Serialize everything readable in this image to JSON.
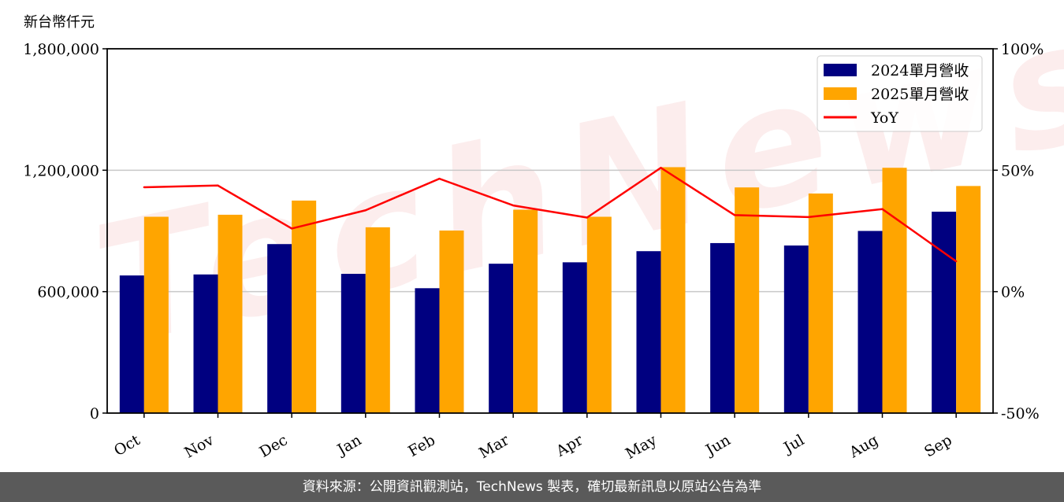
{
  "unit_label": "新台幣仟元",
  "footer": "資料來源：公開資訊觀測站，TechNews 製表，確切最新訊息以原站公告為準",
  "watermark": "TechNews",
  "colors": {
    "series_2024": "#000080",
    "series_2025": "#ffa500",
    "yoy": "#ff0000",
    "grid": "#c8c8c8",
    "footer_bg": "#5a5a5a"
  },
  "chart_data": {
    "type": "bar",
    "categories": [
      "Oct",
      "Nov",
      "Dec",
      "Jan",
      "Feb",
      "Mar",
      "Apr",
      "May",
      "Jun",
      "Jul",
      "Aug",
      "Sep"
    ],
    "series": [
      {
        "name": "2024單月營收",
        "values": [
          680000,
          685000,
          835000,
          688000,
          617000,
          738000,
          745000,
          800000,
          840000,
          828000,
          900000,
          995000
        ]
      },
      {
        "name": "2025單月營收",
        "values": [
          970000,
          980000,
          1050000,
          918000,
          902000,
          1005000,
          970000,
          1215000,
          1115000,
          1085000,
          1212000,
          1122000
        ]
      },
      {
        "name": "YoY",
        "type": "line",
        "axis": "right",
        "values": [
          43,
          43.7,
          26,
          33.5,
          46.5,
          35.5,
          30.5,
          51,
          31.5,
          30.7,
          34,
          12.5
        ]
      }
    ],
    "yticks_left": [
      "0",
      "600,000",
      "1,200,000",
      "1,800,000"
    ],
    "yticks_right": [
      "-50%",
      "0%",
      "50%",
      "100%"
    ],
    "ylim": [
      0,
      1800000
    ],
    "ylim_right": [
      -50,
      100
    ],
    "grid": true,
    "legend": "top-right"
  }
}
